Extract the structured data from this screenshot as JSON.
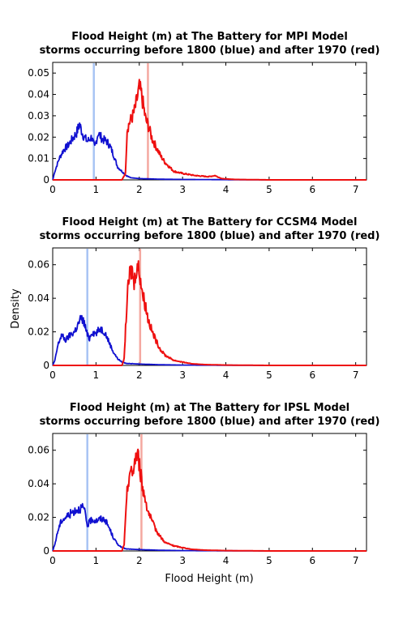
{
  "figure": {
    "ylabel": "Density",
    "xlabel": "Flood Height (m)"
  },
  "colors": {
    "pre": "#1010d0",
    "post": "#ee1010",
    "pre_median": "#a8c4f4",
    "post_median": "#f4a8a0",
    "axis": "#000000"
  },
  "chart_data": [
    {
      "type": "line",
      "title_line1": "Flood Height (m) at The Battery for MPI Model",
      "title_line2": "storms occurring before 1800 (blue) and after 1970 (red)",
      "xlim": [
        0,
        7.25
      ],
      "ylim": [
        0,
        0.055
      ],
      "xticks": [
        "0",
        "1",
        "2",
        "3",
        "4",
        "5",
        "6",
        "7"
      ],
      "yticks": [
        "0",
        "0.01",
        "0.02",
        "0.03",
        "0.04",
        "0.05"
      ],
      "series": [
        {
          "key": "pre",
          "x": [
            0,
            0.05,
            0.15,
            0.25,
            0.35,
            0.45,
            0.55,
            0.62,
            0.7,
            0.8,
            0.9,
            0.97,
            1.05,
            1.15,
            1.25,
            1.32,
            1.4,
            1.5,
            1.6,
            1.7,
            1.8,
            2.0,
            2.5,
            3,
            4,
            5,
            6,
            7,
            7.25
          ],
          "y": [
            0,
            0.004,
            0.01,
            0.014,
            0.016,
            0.019,
            0.022,
            0.026,
            0.021,
            0.018,
            0.02,
            0.015,
            0.022,
            0.019,
            0.018,
            0.016,
            0.012,
            0.006,
            0.004,
            0.002,
            0.001,
            0.0006,
            0.0003,
            0.0002,
            0.0001,
            0,
            0,
            0,
            0
          ]
        },
        {
          "key": "post",
          "x": [
            0,
            1.6,
            1.68,
            1.72,
            1.78,
            1.85,
            1.9,
            1.95,
            2.0,
            2.05,
            2.1,
            2.15,
            2.2,
            2.3,
            2.4,
            2.5,
            2.6,
            2.7,
            2.8,
            3.0,
            3.3,
            3.6,
            3.75,
            3.9,
            4.2,
            5,
            6,
            7,
            7.25
          ],
          "y": [
            0,
            0,
            0.003,
            0.024,
            0.027,
            0.03,
            0.033,
            0.038,
            0.043,
            0.04,
            0.034,
            0.028,
            0.026,
            0.019,
            0.015,
            0.011,
            0.008,
            0.006,
            0.004,
            0.003,
            0.002,
            0.0015,
            0.002,
            0.0006,
            0.0002,
            0,
            0,
            0,
            0
          ]
        }
      ],
      "medians": {
        "pre": 0.95,
        "post": 2.2
      }
    },
    {
      "type": "line",
      "title_line1": "Flood Height (m) at The Battery for CCSM4 Model",
      "title_line2": "storms occurring before 1800 (blue) and after 1970 (red)",
      "xlim": [
        0,
        7.25
      ],
      "ylim": [
        0,
        0.07
      ],
      "xticks": [
        "0",
        "1",
        "2",
        "3",
        "4",
        "5",
        "6",
        "7"
      ],
      "yticks": [
        "0",
        "0.02",
        "0.04",
        "0.06"
      ],
      "series": [
        {
          "key": "pre",
          "x": [
            0,
            0.05,
            0.12,
            0.2,
            0.3,
            0.4,
            0.5,
            0.6,
            0.65,
            0.72,
            0.8,
            0.85,
            0.9,
            1.0,
            1.1,
            1.2,
            1.3,
            1.4,
            1.5,
            1.6,
            1.7,
            2.0,
            2.5,
            3,
            4,
            5,
            6,
            7,
            7.25
          ],
          "y": [
            0,
            0.003,
            0.012,
            0.018,
            0.015,
            0.018,
            0.02,
            0.025,
            0.028,
            0.026,
            0.018,
            0.016,
            0.02,
            0.019,
            0.022,
            0.02,
            0.014,
            0.008,
            0.004,
            0.002,
            0.0012,
            0.0008,
            0.0004,
            0.0002,
            0.0001,
            0,
            0,
            0,
            0
          ]
        },
        {
          "key": "post",
          "x": [
            0,
            1.6,
            1.65,
            1.72,
            1.78,
            1.84,
            1.88,
            1.92,
            1.98,
            2.03,
            2.08,
            2.15,
            2.2,
            2.3,
            2.4,
            2.5,
            2.6,
            2.8,
            3.0,
            3.2,
            3.5,
            4,
            5,
            6,
            7,
            7.25
          ],
          "y": [
            0,
            0,
            0.004,
            0.04,
            0.055,
            0.057,
            0.048,
            0.058,
            0.058,
            0.052,
            0.042,
            0.035,
            0.028,
            0.02,
            0.014,
            0.009,
            0.006,
            0.003,
            0.002,
            0.001,
            0.0005,
            0.0002,
            0,
            0,
            0,
            0
          ]
        }
      ],
      "medians": {
        "pre": 0.8,
        "post": 2.02
      }
    },
    {
      "type": "line",
      "title_line1": "Flood Height (m) at The Battery for IPSL Model",
      "title_line2": "storms occurring before 1800 (blue) and after 1970 (red)",
      "xlim": [
        0,
        7.25
      ],
      "ylim": [
        0,
        0.07
      ],
      "xticks": [
        "0",
        "1",
        "2",
        "3",
        "4",
        "5",
        "6",
        "7"
      ],
      "yticks": [
        "0",
        "0.02",
        "0.04",
        "0.06"
      ],
      "series": [
        {
          "key": "pre",
          "x": [
            0,
            0.05,
            0.12,
            0.2,
            0.3,
            0.4,
            0.5,
            0.6,
            0.7,
            0.75,
            0.8,
            0.85,
            0.9,
            1.0,
            1.1,
            1.2,
            1.3,
            1.4,
            1.5,
            1.6,
            1.7,
            2.0,
            2.5,
            3,
            4,
            5,
            6,
            7,
            7.25
          ],
          "y": [
            0,
            0.004,
            0.012,
            0.018,
            0.02,
            0.022,
            0.024,
            0.025,
            0.026,
            0.022,
            0.015,
            0.017,
            0.019,
            0.018,
            0.019,
            0.019,
            0.014,
            0.008,
            0.004,
            0.002,
            0.0012,
            0.0008,
            0.0004,
            0.0002,
            0.0001,
            0,
            0,
            0,
            0
          ]
        },
        {
          "key": "post",
          "x": [
            0,
            1.6,
            1.65,
            1.72,
            1.78,
            1.84,
            1.88,
            1.92,
            1.98,
            2.03,
            2.08,
            2.15,
            2.2,
            2.3,
            2.4,
            2.5,
            2.6,
            2.8,
            3.0,
            3.2,
            3.5,
            4,
            5,
            6,
            7,
            7.25
          ],
          "y": [
            0,
            0,
            0.004,
            0.035,
            0.048,
            0.045,
            0.052,
            0.057,
            0.056,
            0.046,
            0.037,
            0.03,
            0.024,
            0.017,
            0.012,
            0.008,
            0.005,
            0.003,
            0.002,
            0.001,
            0.0005,
            0.0002,
            0,
            0,
            0,
            0
          ]
        }
      ],
      "medians": {
        "pre": 0.8,
        "post": 2.05
      }
    }
  ]
}
